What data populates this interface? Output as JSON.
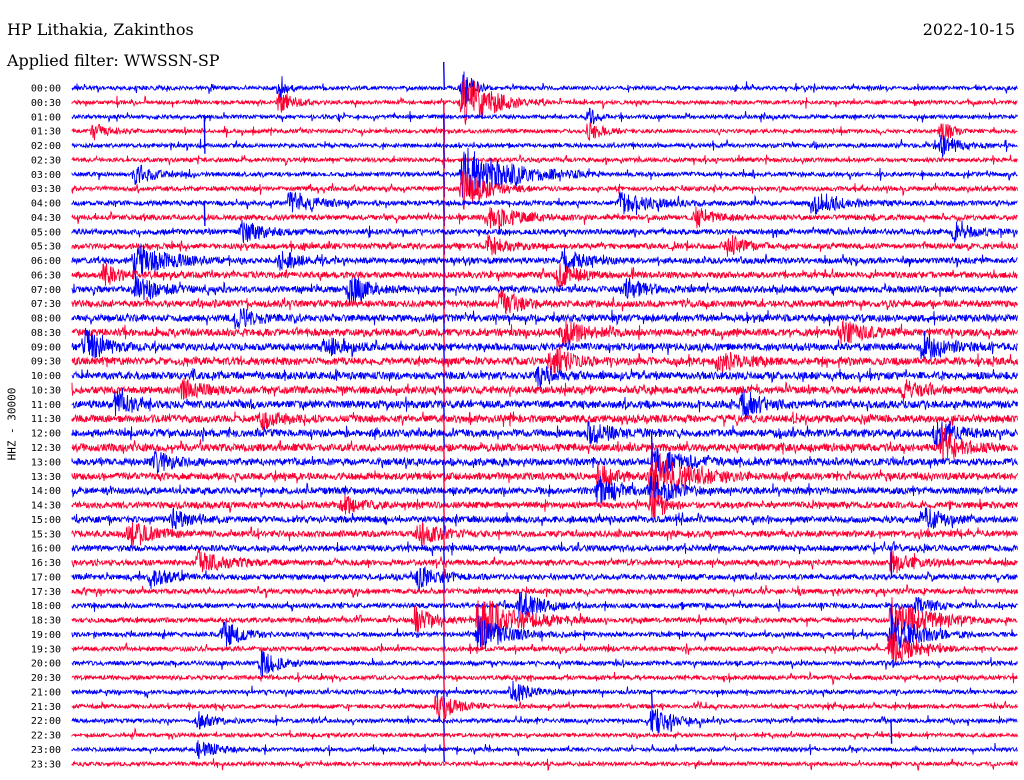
{
  "header": {
    "station": "HP Lithakia, Zakinthos",
    "date": "2022-10-15",
    "filter": "Applied filter: WWSSN-SP"
  },
  "chart_data": {
    "type": "line",
    "title": "HP Lithakia, Zakinthos",
    "subtitle": "Applied filter: WWSSN-SP",
    "date": "2022-10-15",
    "ylabel": "HHZ - 30000",
    "xlabel": "",
    "grid": false,
    "colors": {
      "even_trace": "#0000ff",
      "odd_trace": "#ff0033"
    },
    "row_labels": [
      "00:00",
      "00:30",
      "01:00",
      "01:30",
      "02:00",
      "02:30",
      "03:00",
      "03:30",
      "04:00",
      "04:30",
      "05:00",
      "05:30",
      "06:00",
      "06:30",
      "07:00",
      "07:30",
      "08:00",
      "08:30",
      "09:00",
      "09:30",
      "10:00",
      "10:30",
      "11:00",
      "11:30",
      "12:00",
      "12:30",
      "13:00",
      "13:30",
      "14:00",
      "14:30",
      "15:00",
      "15:30",
      "16:00",
      "16:30",
      "17:00",
      "17:30",
      "18:00",
      "18:30",
      "19:00",
      "19:30",
      "20:00",
      "20:30",
      "21:00",
      "21:30",
      "22:00",
      "22:30",
      "23:00",
      "23:30"
    ],
    "noise_level": [
      0.3,
      0.3,
      0.3,
      0.3,
      0.35,
      0.35,
      0.4,
      0.45,
      0.5,
      0.55,
      0.6,
      0.65,
      0.7,
      0.75,
      0.8,
      0.85,
      0.9,
      0.95,
      1.0,
      1.0,
      1.0,
      1.0,
      1.0,
      1.0,
      1.0,
      1.0,
      0.95,
      0.9,
      0.85,
      0.8,
      0.8,
      0.75,
      0.7,
      0.65,
      0.6,
      0.55,
      0.5,
      0.5,
      0.45,
      0.45,
      0.4,
      0.4,
      0.35,
      0.35,
      0.35,
      0.3,
      0.3,
      0.3
    ],
    "events": [
      {
        "row": 0,
        "minute": 6.6,
        "amplitude": 16,
        "duration_min": 0.3
      },
      {
        "row": 1,
        "minute": 6.6,
        "amplitude": 12,
        "duration_min": 0.7
      },
      {
        "row": 0,
        "minute": 12.4,
        "amplitude": 24,
        "duration_min": 0.5
      },
      {
        "row": 1,
        "minute": 12.4,
        "amplitude": 30,
        "duration_min": 1.5
      },
      {
        "row": 6,
        "minute": 12.4,
        "amplitude": 28,
        "duration_min": 2.5
      },
      {
        "row": 7,
        "minute": 12.4,
        "amplitude": 22,
        "duration_min": 1.2
      },
      {
        "row": 2,
        "minute": 16.4,
        "amplitude": 12,
        "duration_min": 0.4
      },
      {
        "row": 3,
        "minute": 16.4,
        "amplitude": 10,
        "duration_min": 0.7
      },
      {
        "row": 3,
        "minute": 27.6,
        "amplitude": 12,
        "duration_min": 0.5
      },
      {
        "row": 4,
        "minute": 27.6,
        "amplitude": 10,
        "duration_min": 1.0
      },
      {
        "row": 3,
        "minute": 0.7,
        "amplitude": 9,
        "duration_min": 0.8
      },
      {
        "row": 6,
        "minute": 2.0,
        "amplitude": 10,
        "duration_min": 1.0
      },
      {
        "row": 8,
        "minute": 6.9,
        "amplitude": 11,
        "duration_min": 1.3
      },
      {
        "row": 8,
        "minute": 17.4,
        "amplitude": 12,
        "duration_min": 1.5
      },
      {
        "row": 8,
        "minute": 23.5,
        "amplitude": 12,
        "duration_min": 1.5
      },
      {
        "row": 9,
        "minute": 13.2,
        "amplitude": 13,
        "duration_min": 1.4
      },
      {
        "row": 9,
        "minute": 19.8,
        "amplitude": 10,
        "duration_min": 1.0
      },
      {
        "row": 10,
        "minute": 5.4,
        "amplitude": 10,
        "duration_min": 1.2
      },
      {
        "row": 10,
        "minute": 28.0,
        "amplitude": 9,
        "duration_min": 1.0
      },
      {
        "row": 11,
        "minute": 13.2,
        "amplitude": 10,
        "duration_min": 1.0
      },
      {
        "row": 11,
        "minute": 20.8,
        "amplitude": 11,
        "duration_min": 1.0
      },
      {
        "row": 12,
        "minute": 2.0,
        "amplitude": 18,
        "duration_min": 1.6
      },
      {
        "row": 12,
        "minute": 6.6,
        "amplitude": 10,
        "duration_min": 1.0
      },
      {
        "row": 12,
        "minute": 15.6,
        "amplitude": 12,
        "duration_min": 1.0
      },
      {
        "row": 13,
        "minute": 1.0,
        "amplitude": 10,
        "duration_min": 1.0
      },
      {
        "row": 13,
        "minute": 15.4,
        "amplitude": 12,
        "duration_min": 1.0
      },
      {
        "row": 14,
        "minute": 2.0,
        "amplitude": 12,
        "duration_min": 1.2
      },
      {
        "row": 14,
        "minute": 8.8,
        "amplitude": 14,
        "duration_min": 1.0
      },
      {
        "row": 14,
        "minute": 17.6,
        "amplitude": 10,
        "duration_min": 1.0
      },
      {
        "row": 15,
        "minute": 13.6,
        "amplitude": 12,
        "duration_min": 1.0
      },
      {
        "row": 16,
        "minute": 5.2,
        "amplitude": 10,
        "duration_min": 1.0
      },
      {
        "row": 17,
        "minute": 15.6,
        "amplitude": 12,
        "duration_min": 1.2
      },
      {
        "row": 17,
        "minute": 24.4,
        "amplitude": 12,
        "duration_min": 1.2
      },
      {
        "row": 18,
        "minute": 0.4,
        "amplitude": 16,
        "duration_min": 1.0
      },
      {
        "row": 18,
        "minute": 8.0,
        "amplitude": 10,
        "duration_min": 1.0
      },
      {
        "row": 18,
        "minute": 27.0,
        "amplitude": 14,
        "duration_min": 1.2
      },
      {
        "row": 19,
        "minute": 15.2,
        "amplitude": 16,
        "duration_min": 1.0
      },
      {
        "row": 19,
        "minute": 20.5,
        "amplitude": 12,
        "duration_min": 1.0
      },
      {
        "row": 20,
        "minute": 14.8,
        "amplitude": 10,
        "duration_min": 1.0
      },
      {
        "row": 21,
        "minute": 3.5,
        "amplitude": 10,
        "duration_min": 1.0
      },
      {
        "row": 21,
        "minute": 26.4,
        "amplitude": 10,
        "duration_min": 1.0
      },
      {
        "row": 22,
        "minute": 1.4,
        "amplitude": 12,
        "duration_min": 1.0
      },
      {
        "row": 22,
        "minute": 21.3,
        "amplitude": 14,
        "duration_min": 1.0
      },
      {
        "row": 23,
        "minute": 6.0,
        "amplitude": 9,
        "duration_min": 1.0
      },
      {
        "row": 24,
        "minute": 16.4,
        "amplitude": 10,
        "duration_min": 1.3
      },
      {
        "row": 24,
        "minute": 27.4,
        "amplitude": 14,
        "duration_min": 1.0
      },
      {
        "row": 25,
        "minute": 27.6,
        "amplitude": 20,
        "duration_min": 1.0
      },
      {
        "row": 26,
        "minute": 2.6,
        "amplitude": 10,
        "duration_min": 1.0
      },
      {
        "row": 26,
        "minute": 18.4,
        "amplitude": 14,
        "duration_min": 1.5
      },
      {
        "row": 27,
        "minute": 18.4,
        "amplitude": 26,
        "duration_min": 1.8
      },
      {
        "row": 27,
        "minute": 16.7,
        "amplitude": 12,
        "duration_min": 1.0
      },
      {
        "row": 28,
        "minute": 16.7,
        "amplitude": 12,
        "duration_min": 1.0
      },
      {
        "row": 28,
        "minute": 18.4,
        "amplitude": 18,
        "duration_min": 1.0
      },
      {
        "row": 29,
        "minute": 18.4,
        "amplitude": 20,
        "duration_min": 0.6
      },
      {
        "row": 29,
        "minute": 8.6,
        "amplitude": 9,
        "duration_min": 1.0
      },
      {
        "row": 30,
        "minute": 3.2,
        "amplitude": 10,
        "duration_min": 1.0
      },
      {
        "row": 30,
        "minute": 27.0,
        "amplitude": 12,
        "duration_min": 1.0
      },
      {
        "row": 31,
        "minute": 1.8,
        "amplitude": 12,
        "duration_min": 1.2
      },
      {
        "row": 31,
        "minute": 11.0,
        "amplitude": 12,
        "duration_min": 1.0
      },
      {
        "row": 33,
        "minute": 4.0,
        "amplitude": 10,
        "duration_min": 1.5
      },
      {
        "row": 33,
        "minute": 26.0,
        "amplitude": 10,
        "duration_min": 1.0
      },
      {
        "row": 34,
        "minute": 2.5,
        "amplitude": 10,
        "duration_min": 1.0
      },
      {
        "row": 34,
        "minute": 11.0,
        "amplitude": 11,
        "duration_min": 1.2
      },
      {
        "row": 36,
        "minute": 14.2,
        "amplitude": 14,
        "duration_min": 1.2
      },
      {
        "row": 36,
        "minute": 26.8,
        "amplitude": 8,
        "duration_min": 1.0
      },
      {
        "row": 37,
        "minute": 10.9,
        "amplitude": 12,
        "duration_min": 1.0
      },
      {
        "row": 37,
        "minute": 12.9,
        "amplitude": 26,
        "duration_min": 2.0
      },
      {
        "row": 38,
        "minute": 12.9,
        "amplitude": 18,
        "duration_min": 1.5
      },
      {
        "row": 38,
        "minute": 4.8,
        "amplitude": 13,
        "duration_min": 1.0
      },
      {
        "row": 37,
        "minute": 26.0,
        "amplitude": 22,
        "duration_min": 1.8
      },
      {
        "row": 38,
        "minute": 26.0,
        "amplitude": 20,
        "duration_min": 1.5
      },
      {
        "row": 39,
        "minute": 26.0,
        "amplitude": 18,
        "duration_min": 1.2
      },
      {
        "row": 40,
        "minute": 6.0,
        "amplitude": 13,
        "duration_min": 1.0
      },
      {
        "row": 42,
        "minute": 14.0,
        "amplitude": 10,
        "duration_min": 1.0
      },
      {
        "row": 43,
        "minute": 11.6,
        "amplitude": 14,
        "duration_min": 1.0
      },
      {
        "row": 44,
        "minute": 18.4,
        "amplitude": 16,
        "duration_min": 1.0
      },
      {
        "row": 44,
        "minute": 4.0,
        "amplitude": 8,
        "duration_min": 1.0
      },
      {
        "row": 46,
        "minute": 4.0,
        "amplitude": 10,
        "duration_min": 1.0
      }
    ],
    "spikes": [
      {
        "row": 0,
        "minute": 11.8,
        "up": 26,
        "down": 0
      },
      {
        "row": 1,
        "minute": 11.8,
        "up": 0,
        "down": 90
      },
      {
        "row": 2,
        "minute": 11.8,
        "up": 0,
        "down": 70
      },
      {
        "row": 3,
        "minute": 11.8,
        "up": 0,
        "down": 80
      },
      {
        "row": 4,
        "minute": 11.8,
        "up": 0,
        "down": 60
      },
      {
        "row": 5,
        "minute": 11.8,
        "up": 0,
        "down": 80
      },
      {
        "row": 6,
        "minute": 11.8,
        "up": 0,
        "down": 60
      },
      {
        "row": 7,
        "minute": 11.8,
        "up": 0,
        "down": 80
      },
      {
        "row": 8,
        "minute": 11.8,
        "up": 0,
        "down": 60
      },
      {
        "row": 9,
        "minute": 11.8,
        "up": 0,
        "down": 80
      },
      {
        "row": 10,
        "minute": 11.8,
        "up": 0,
        "down": 60
      },
      {
        "row": 11,
        "minute": 11.8,
        "up": 0,
        "down": 80
      },
      {
        "row": 12,
        "minute": 11.8,
        "up": 0,
        "down": 60
      },
      {
        "row": 13,
        "minute": 11.8,
        "up": 0,
        "down": 60
      },
      {
        "row": 14,
        "minute": 11.8,
        "up": 0,
        "down": 50
      },
      {
        "row": 15,
        "minute": 11.8,
        "up": 0,
        "down": 50
      },
      {
        "row": 16,
        "minute": 11.8,
        "up": 0,
        "down": 40
      },
      {
        "row": 17,
        "minute": 11.8,
        "up": 0,
        "down": 40
      },
      {
        "row": 18,
        "minute": 11.8,
        "up": 0,
        "down": 40
      },
      {
        "row": 19,
        "minute": 11.8,
        "up": 0,
        "down": 40
      },
      {
        "row": 20,
        "minute": 11.8,
        "up": 0,
        "down": 40
      },
      {
        "row": 21,
        "minute": 11.8,
        "up": 0,
        "down": 40
      },
      {
        "row": 22,
        "minute": 11.8,
        "up": 0,
        "down": 40
      },
      {
        "row": 23,
        "minute": 11.8,
        "up": 0,
        "down": 40
      },
      {
        "row": 24,
        "minute": 11.8,
        "up": 0,
        "down": 40
      },
      {
        "row": 25,
        "minute": 11.8,
        "up": 0,
        "down": 40
      },
      {
        "row": 26,
        "minute": 11.8,
        "up": 0,
        "down": 40
      },
      {
        "row": 27,
        "minute": 11.8,
        "up": 0,
        "down": 40
      },
      {
        "row": 28,
        "minute": 11.8,
        "up": 0,
        "down": 40
      },
      {
        "row": 29,
        "minute": 11.8,
        "up": 0,
        "down": 40
      },
      {
        "row": 30,
        "minute": 11.8,
        "up": 0,
        "down": 40
      },
      {
        "row": 31,
        "minute": 11.8,
        "up": 0,
        "down": 40
      },
      {
        "row": 32,
        "minute": 11.8,
        "up": 0,
        "down": 40
      },
      {
        "row": 33,
        "minute": 11.8,
        "up": 0,
        "down": 40
      },
      {
        "row": 34,
        "minute": 11.8,
        "up": 0,
        "down": 40
      },
      {
        "row": 35,
        "minute": 11.8,
        "up": 0,
        "down": 40
      },
      {
        "row": 36,
        "minute": 11.8,
        "up": 0,
        "down": 40
      },
      {
        "row": 37,
        "minute": 11.8,
        "up": 0,
        "down": 40
      },
      {
        "row": 38,
        "minute": 11.8,
        "up": 0,
        "down": 40
      },
      {
        "row": 39,
        "minute": 11.8,
        "up": 0,
        "down": 40
      },
      {
        "row": 40,
        "minute": 11.8,
        "up": 0,
        "down": 40
      },
      {
        "row": 41,
        "minute": 11.8,
        "up": 0,
        "down": 40
      },
      {
        "row": 42,
        "minute": 11.8,
        "up": 0,
        "down": 40
      },
      {
        "row": 43,
        "minute": 11.8,
        "up": 0,
        "down": 40
      },
      {
        "row": 44,
        "minute": 11.8,
        "up": 0,
        "down": 40
      },
      {
        "row": 45,
        "minute": 11.8,
        "up": 0,
        "down": 40
      },
      {
        "row": 46,
        "minute": 11.8,
        "up": 0,
        "down": 30
      },
      {
        "row": 2,
        "minute": 4.2,
        "up": 0,
        "down": 100
      },
      {
        "row": 8,
        "minute": 4.2,
        "up": 0,
        "down": 60
      },
      {
        "row": 24,
        "minute": 18.4,
        "up": 0,
        "down": 80
      },
      {
        "row": 36,
        "minute": 26.0,
        "up": 0,
        "down": 90
      },
      {
        "row": 32,
        "minute": 26.0,
        "up": 0,
        "down": 80
      },
      {
        "row": 44,
        "minute": 26.0,
        "up": 0,
        "down": 60
      },
      {
        "row": 37,
        "minute": 13.0,
        "up": 0,
        "down": 80
      },
      {
        "row": 42,
        "minute": 18.4,
        "up": 0,
        "down": 40
      }
    ]
  }
}
